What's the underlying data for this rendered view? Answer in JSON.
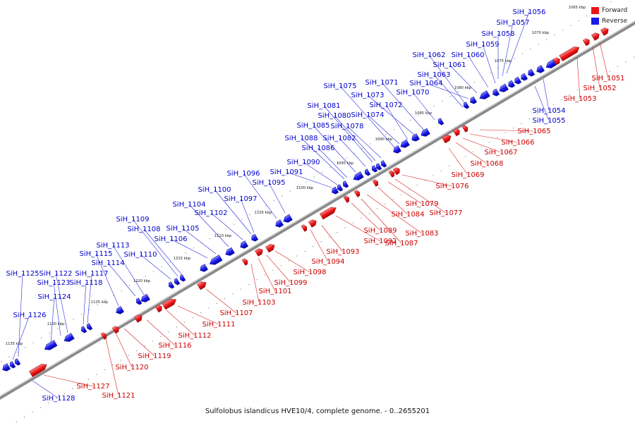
{
  "caption": "Sulfolobus islandicus HVE10/4, complete genome. - 0..2655201",
  "colors": {
    "forward": "#e81818",
    "reverse": "#1a1ae6",
    "forward_label": "#cc0000",
    "reverse_label": "#0000cc",
    "backbone": "#777777"
  },
  "legend": [
    {
      "label": "Forward",
      "color": "#e81818"
    },
    {
      "label": "Reverse",
      "color": "#1a1ae6"
    }
  ],
  "ticks": [
    "1065 kbp",
    "1070 kbp",
    "1075 kbp",
    "1080 kbp",
    "1085 kbp",
    "1090 kbp",
    "1095 kbp",
    "1100 kbp",
    "1105 kbp",
    "1110 kbp",
    "1115 kbp",
    "1120 kbp",
    "1125 kbp",
    "1130 kbp",
    "1135 kbp"
  ],
  "reverse_labels": [
    "SiH_1056",
    "SiH_1057",
    "SiH_1058",
    "SiH_1059",
    "SiH_1060",
    "SiH_1061",
    "SiH_1062",
    "SiH_1063",
    "SiH_1064",
    "SiH_1070",
    "SiH_1071",
    "SiH_1072",
    "SiH_1073",
    "SiH_1074",
    "SiH_1075",
    "SiH_1078",
    "SiH_1080",
    "SiH_1081",
    "SiH_1082",
    "SiH_1085",
    "SiH_1086",
    "SiH_1088",
    "SiH_1090",
    "SiH_1091",
    "SiH_1095",
    "SiH_1096",
    "SiH_1097",
    "SiH_1100",
    "SiH_1102",
    "SiH_1104",
    "SiH_1105",
    "SiH_1106",
    "SiH_1108",
    "SiH_1109",
    "SiH_1110",
    "SiH_1113",
    "SiH_1114",
    "SiH_1115",
    "SiH_1117",
    "SiH_1118",
    "SiH_1122",
    "SiH_1123",
    "SiH_1124",
    "SiH_1125",
    "SiH_1126",
    "SiH_1054",
    "SiH_1055",
    "SiH_1128"
  ],
  "forward_labels": [
    "SiH_1051",
    "SiH_1052",
    "SiH_1053",
    "SiH_1065",
    "SiH_1066",
    "SiH_1067",
    "SiH_1068",
    "SiH_1069",
    "SiH_1076",
    "SiH_1077",
    "SiH_1079",
    "SiH_1083",
    "SiH_1084",
    "SiH_1087",
    "SiH_1089",
    "SiH_1092",
    "SiH_1093",
    "SiH_1094",
    "SiH_1098",
    "SiH_1099",
    "SiH_1101",
    "SiH_1103",
    "SiH_1107",
    "SiH_1111",
    "SiH_1112",
    "SiH_1116",
    "SiH_1119",
    "SiH_1120",
    "SiH_1121",
    "SiH_1127"
  ]
}
